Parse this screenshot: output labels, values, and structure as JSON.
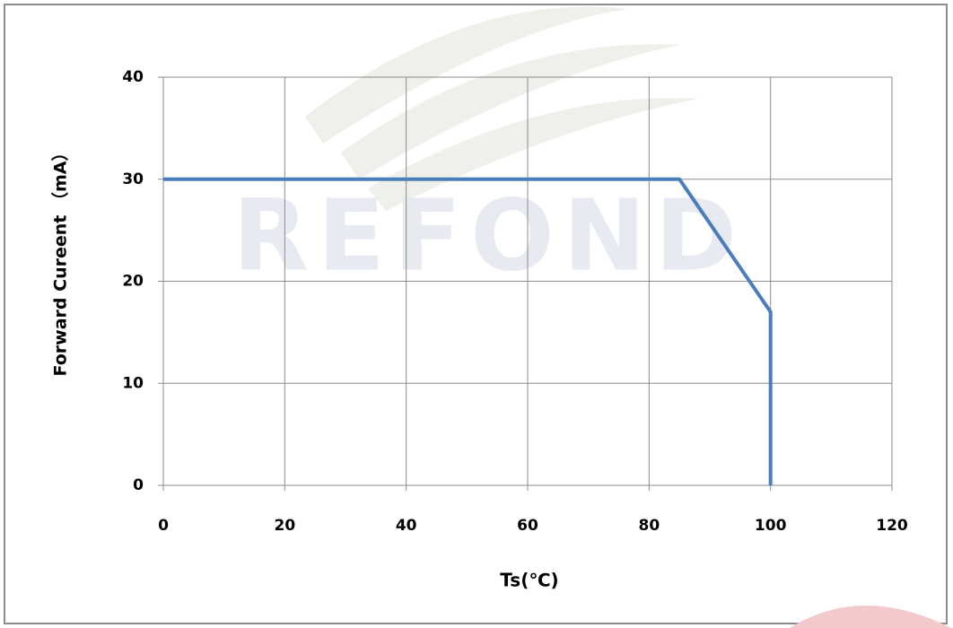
{
  "chart_data": {
    "type": "line",
    "watermark": "REFOND",
    "xlabel": "Ts(℃)",
    "ylabel": "Forward Cureent （mA）",
    "x": [
      0,
      85,
      100,
      100
    ],
    "series": [
      {
        "color": "#4a7ebb",
        "values": [
          30,
          30,
          17,
          0
        ]
      }
    ],
    "xlim": [
      0,
      120
    ],
    "xticks": [
      0,
      20,
      40,
      60,
      80,
      100,
      120
    ],
    "ylim": [
      0,
      40
    ],
    "yticks": [
      0,
      10,
      20,
      30,
      40
    ],
    "grid": true
  }
}
